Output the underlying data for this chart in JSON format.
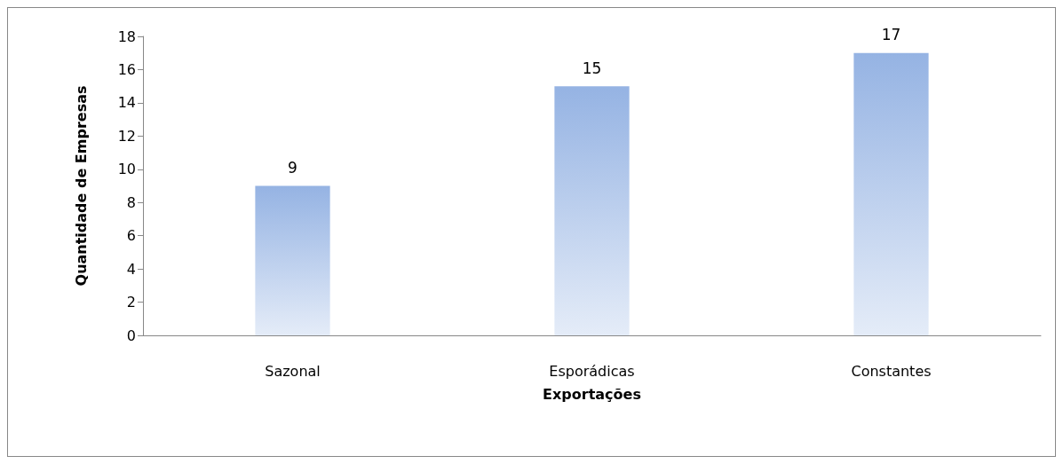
{
  "chart_data": {
    "type": "bar",
    "categories": [
      "Sazonal",
      "Esporádicas",
      "Constantes"
    ],
    "values": [
      9,
      15,
      17
    ],
    "color": "#95b3e3",
    "xlabel": "Exportações",
    "ylabel": "Quantidade de Empresas",
    "ylim": [
      0,
      18
    ],
    "yticks": [
      0,
      2,
      4,
      6,
      8,
      10,
      12,
      14,
      16,
      18
    ],
    "grid": false,
    "data_labels": true
  }
}
